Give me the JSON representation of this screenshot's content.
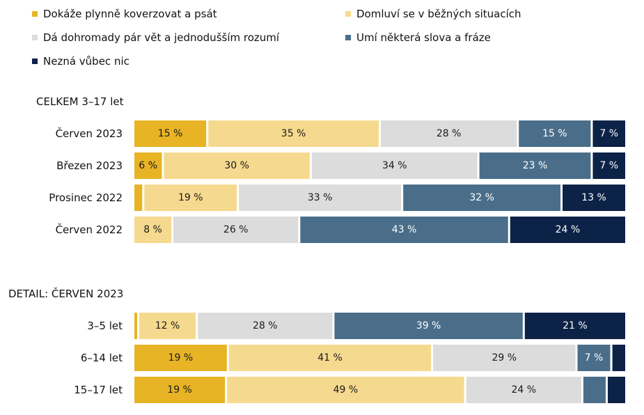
{
  "colors": {
    "plynne": "#E8B425",
    "domluvi": "#F5D98E",
    "dohromady": "#DCDCDC",
    "slova": "#4A6E8A",
    "nic": "#0C2347"
  },
  "chart_data": {
    "type": "bar",
    "orientation": "horizontal",
    "stacked": true,
    "percent": true,
    "legend_position": "top",
    "series": [
      {
        "name": "Dokáže plynně koverzovat a psát",
        "color_key": "plynne"
      },
      {
        "name": "Domluví se v běžných situacích",
        "color_key": "domluvi"
      },
      {
        "name": "Dá dohromady pár vět a jednodušším rozumí",
        "color_key": "dohromady"
      },
      {
        "name": "Umí některá slova a fráze",
        "color_key": "slova"
      },
      {
        "name": "Nezná vůbec nic",
        "color_key": "nic"
      }
    ],
    "groups": [
      {
        "title": "CELKEM 3–17 let",
        "rows": [
          {
            "label": "Červen 2023",
            "values": [
              15,
              35,
              28,
              15,
              7
            ],
            "labels": [
              "15 %",
              "35 %",
              "28 %",
              "15 %",
              "7 %"
            ]
          },
          {
            "label": "Březen 2023",
            "values": [
              6,
              30,
              34,
              23,
              7
            ],
            "labels": [
              "6 %",
              "30 %",
              "34 %",
              "23 %",
              "7 %"
            ]
          },
          {
            "label": "Prosinec 2022",
            "values": [
              2,
              19,
              33,
              32,
              13
            ],
            "labels": [
              "",
              "19 %",
              "33 %",
              "32 %",
              "13 %"
            ]
          },
          {
            "label": "Červen 2022",
            "values": [
              0,
              8,
              26,
              43,
              24
            ],
            "labels": [
              "",
              "8 %",
              "26 %",
              "43 %",
              "24 %"
            ]
          }
        ]
      },
      {
        "title": "DETAIL: ČERVEN 2023",
        "rows": [
          {
            "label": "3–5 let",
            "values": [
              1,
              12,
              28,
              39,
              21
            ],
            "labels": [
              "",
              "12 %",
              "28 %",
              "39 %",
              "21 %"
            ]
          },
          {
            "label": "6–14 let",
            "values": [
              19,
              41,
              29,
              7,
              3
            ],
            "labels": [
              "19 %",
              "41 %",
              "29 %",
              "7 %",
              ""
            ]
          },
          {
            "label": "15–17 let",
            "values": [
              19,
              49,
              24,
              5,
              4
            ],
            "labels": [
              "19 %",
              "49 %",
              "24 %",
              "",
              ""
            ]
          }
        ]
      }
    ]
  }
}
